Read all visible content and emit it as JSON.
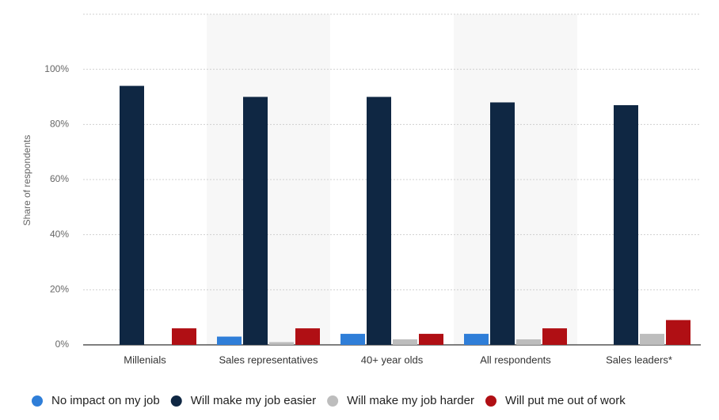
{
  "chart_data": {
    "type": "bar",
    "y_label": "Share of respondents",
    "categories": [
      "Millenials",
      "Sales representatives",
      "40+ year olds",
      "All respondents",
      "Sales leaders*"
    ],
    "series": [
      {
        "name": "No impact on my job",
        "color": "#2f7ed8",
        "values": [
          0,
          3,
          4,
          4,
          0
        ]
      },
      {
        "name": "Will make my job easier",
        "color": "#0f2743",
        "values": [
          94,
          90,
          90,
          88,
          87
        ]
      },
      {
        "name": "Will make my job harder",
        "color": "#bdbdbd",
        "values": [
          0,
          1,
          2,
          2,
          4
        ]
      },
      {
        "name": "Will put me out of work",
        "color": "#b00f14",
        "values": [
          6,
          6,
          4,
          6,
          9
        ]
      }
    ],
    "ylim": [
      0,
      120
    ],
    "yticks": [
      {
        "value": 0,
        "label": "0%"
      },
      {
        "value": 20,
        "label": "20%"
      },
      {
        "value": 40,
        "label": "40%"
      },
      {
        "value": 60,
        "label": "60%"
      },
      {
        "value": 80,
        "label": "80%"
      },
      {
        "value": 100,
        "label": "100%"
      }
    ],
    "grid": true
  }
}
